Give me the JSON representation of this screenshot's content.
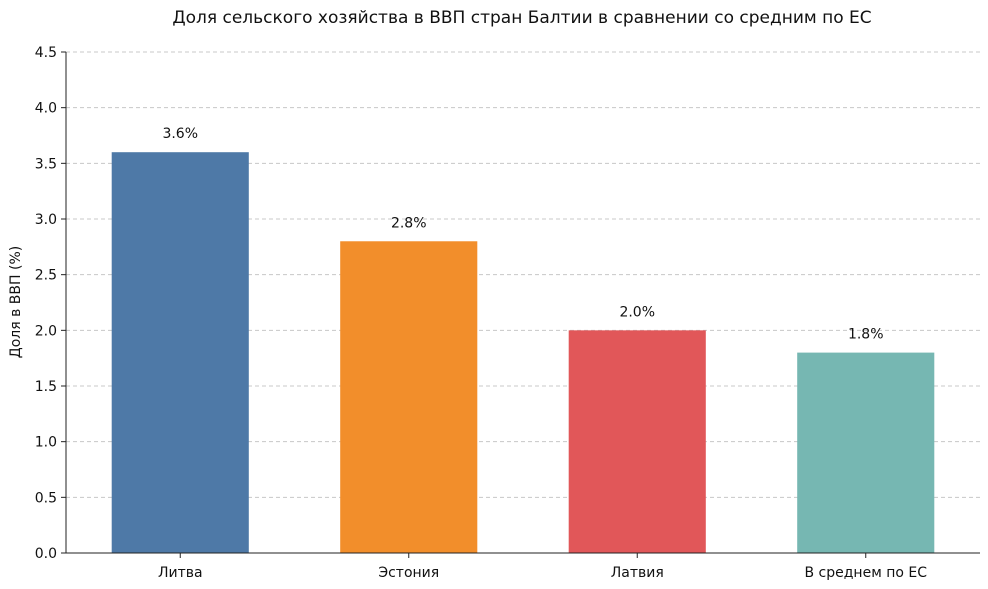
{
  "chart_data": {
    "type": "bar",
    "title": "Доля сельского хозяйства в ВВП стран Балтии в сравнении со средним по ЕС",
    "xlabel": "",
    "ylabel": "Доля в ВВП (%)",
    "categories": [
      "Литва",
      "Эстония",
      "Латвия",
      "В среднем по ЕС"
    ],
    "values": [
      3.6,
      2.8,
      2.0,
      1.8
    ],
    "value_labels": [
      "3.6%",
      "2.8%",
      "2.0%",
      "1.8%"
    ],
    "colors": [
      "#4e79a7",
      "#f28e2b",
      "#e15759",
      "#76b7b2"
    ],
    "ylim": [
      0,
      4.5
    ],
    "yticks": [
      "0.0",
      "0.5",
      "1.0",
      "1.5",
      "2.0",
      "2.5",
      "3.0",
      "3.5",
      "4.0",
      "4.5"
    ],
    "grid": true
  }
}
